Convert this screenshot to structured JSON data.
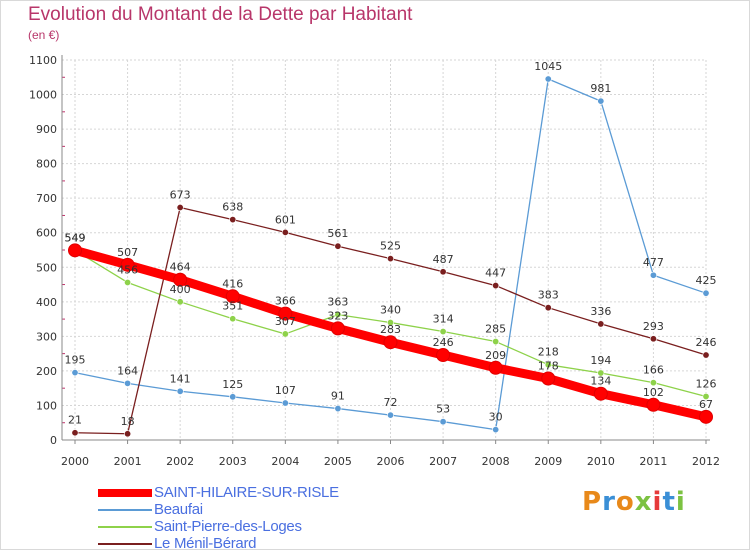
{
  "title": "Evolution du Montant de la Dette par Habitant",
  "subtitle": "(en €)",
  "logo_text": "Proxiti",
  "logo_colors": [
    "#e8891a",
    "#3a8fd6",
    "#e8891a",
    "#7cc242",
    "#e63a3a",
    "#3a8fd6",
    "#7cc242"
  ],
  "chart_data": {
    "type": "line",
    "x": [
      "2000",
      "2001",
      "2002",
      "2003",
      "2004",
      "2005",
      "2006",
      "2007",
      "2008",
      "2009",
      "2010",
      "2011",
      "2012"
    ],
    "ylim": [
      0,
      1100
    ],
    "yticks": [
      "0",
      "100",
      "200",
      "300",
      "400",
      "500",
      "600",
      "700",
      "800",
      "900",
      "1000",
      "1100"
    ],
    "grid": true,
    "legend_position": "bottom-left",
    "series": [
      {
        "name": "SAINT-HILAIRE-SUR-RISLE",
        "color": "#ff0000",
        "values": [
          549,
          507,
          464,
          416,
          366,
          323,
          283,
          246,
          209,
          178,
          134,
          102,
          67
        ],
        "labels": [
          "549",
          "507",
          "464",
          "416",
          "366",
          "323",
          "283",
          "246",
          "209",
          "178",
          "134",
          "102",
          "67"
        ]
      },
      {
        "name": "Beaufai",
        "color": "#5b9bd5",
        "values": [
          195,
          164,
          141,
          125,
          107,
          91,
          72,
          53,
          30,
          1045,
          981,
          477,
          425
        ],
        "labels": [
          "195",
          "164",
          "141",
          "125",
          "107",
          "91",
          "72",
          "53",
          "30",
          "1045",
          "981",
          "477",
          "425"
        ]
      },
      {
        "name": "Saint-Pierre-des-Loges",
        "color": "#8ed24a",
        "values": [
          549,
          456,
          400,
          351,
          307,
          363,
          340,
          314,
          285,
          218,
          194,
          166,
          126
        ],
        "labels": [
          "549",
          "456",
          "400",
          "351",
          "307",
          "363",
          "340",
          "314",
          "285",
          "218",
          "194",
          "166",
          "126"
        ]
      },
      {
        "name": "Le Ménil-Bérard",
        "color": "#7a1f1f",
        "values": [
          21,
          18,
          673,
          638,
          601,
          561,
          525,
          487,
          447,
          383,
          336,
          293,
          246
        ],
        "labels": [
          "21",
          "18",
          "673",
          "638",
          "601",
          "561",
          "525",
          "487",
          "447",
          "383",
          "336",
          "293",
          "246"
        ]
      }
    ]
  }
}
